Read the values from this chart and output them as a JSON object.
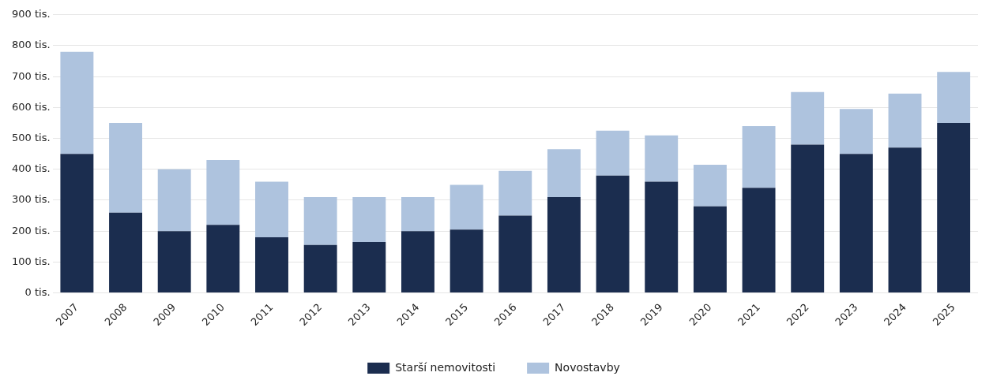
{
  "chart_data": {
    "type": "bar",
    "stacked": true,
    "categories": [
      "2007",
      "2008",
      "2009",
      "2010",
      "2011",
      "2012",
      "2013",
      "2014",
      "2015",
      "2016",
      "2017",
      "2018",
      "2019",
      "2020",
      "2021",
      "2022",
      "2023",
      "2024",
      "2025"
    ],
    "series": [
      {
        "name": "Starší nemovitosti",
        "color": "#1b2d4f",
        "values": [
          450,
          260,
          200,
          220,
          180,
          155,
          165,
          200,
          205,
          250,
          310,
          380,
          360,
          280,
          340,
          480,
          450,
          470,
          550
        ]
      },
      {
        "name": "Novostavby",
        "color": "#aec3de",
        "values": [
          330,
          290,
          200,
          210,
          180,
          155,
          145,
          110,
          145,
          145,
          155,
          145,
          150,
          135,
          200,
          170,
          145,
          175,
          165
        ]
      }
    ],
    "ylim": [
      0,
      900
    ],
    "yticks": [
      {
        "value": 0,
        "label": "0 tis."
      },
      {
        "value": 100,
        "label": "100 tis."
      },
      {
        "value": 200,
        "label": "200 tis."
      },
      {
        "value": 300,
        "label": "300 tis."
      },
      {
        "value": 400,
        "label": "400 tis."
      },
      {
        "value": 500,
        "label": "500 tis."
      },
      {
        "value": 600,
        "label": "600 tis."
      },
      {
        "value": 700,
        "label": "700 tis."
      },
      {
        "value": 800,
        "label": "800 tis."
      },
      {
        "value": 900,
        "label": "900 tis."
      }
    ],
    "grid": "y",
    "legend": "bottom"
  }
}
